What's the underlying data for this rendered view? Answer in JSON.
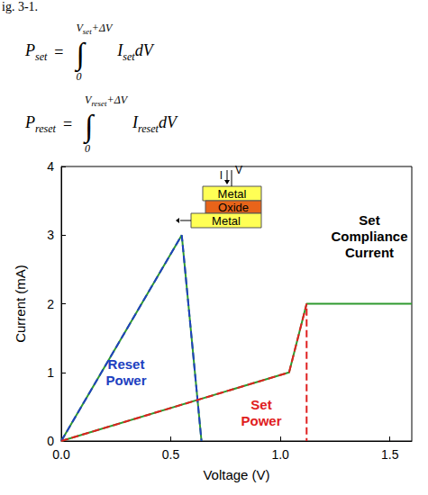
{
  "caption": "ig. 3-1.",
  "equations": [
    {
      "lhs": "P",
      "lhs_sub": "set",
      "equals": "=",
      "sign": "∫",
      "upper": "V",
      "upper_sub": "set",
      "upper_tail": "+ΔV",
      "lower": "0",
      "integrand": "I",
      "integrand_sub": "set",
      "differential": "dV"
    },
    {
      "lhs": "P",
      "lhs_sub": "reset",
      "equals": "=",
      "sign": "∫",
      "upper": "V",
      "upper_sub": "reset",
      "upper_tail": "+ΔV",
      "lower": "0",
      "integrand": "I",
      "integrand_sub": "reset",
      "differential": "dV"
    }
  ],
  "chart_data": {
    "type": "line",
    "xlabel": "Voltage (V)",
    "ylabel": "Current (mA)",
    "xlim": [
      0,
      1.6
    ],
    "ylim": [
      0,
      4
    ],
    "xticks": [
      {
        "value": 0,
        "label": "0.0"
      },
      {
        "value": 0.5,
        "label": "0.5"
      },
      {
        "value": 1,
        "label": "1.0"
      },
      {
        "value": 1.5,
        "label": "1.5"
      }
    ],
    "yticks": [
      0,
      1,
      2,
      3,
      4
    ],
    "grid": false,
    "marker": "none",
    "series": [
      {
        "color": "#2e9a2e",
        "line_style": "solid",
        "x": [
          0,
          0.55,
          0.64
        ],
        "values": [
          0,
          3,
          0
        ]
      },
      {
        "color": "#2e9a2e",
        "line_style": "solid",
        "x": [
          0,
          1.04,
          1.12,
          1.6
        ],
        "values": [
          0,
          1,
          2,
          2
        ]
      },
      {
        "color": "#2040c0",
        "line_style": "dashed",
        "x": [
          0,
          0.55,
          0.64
        ],
        "values": [
          0,
          3,
          0
        ]
      },
      {
        "color": "#e02020",
        "line_style": "dashed",
        "x": [
          0,
          1.04,
          1.12,
          1.12
        ],
        "values": [
          0,
          1,
          2,
          0
        ]
      }
    ],
    "annotations": [
      {
        "text": "Reset Power",
        "color": "#2040c0"
      },
      {
        "text": "Set Power",
        "color": "#e02020"
      },
      {
        "text": "Set Compliance Current",
        "color": "#000000"
      }
    ],
    "inset": {
      "layers": [
        "Metal",
        "Oxide",
        "Metal"
      ],
      "labels": [
        "I",
        "V"
      ]
    }
  }
}
